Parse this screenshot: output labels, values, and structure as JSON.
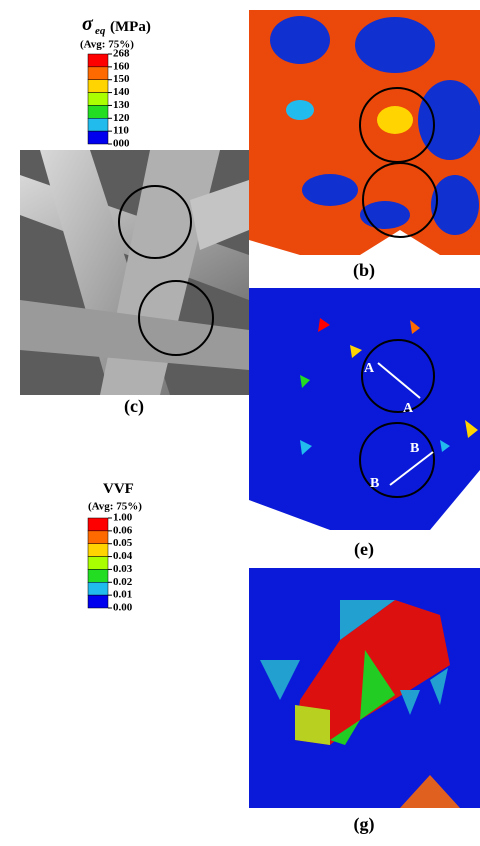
{
  "legends": [
    {
      "symbol": "σ",
      "subscript": "eq",
      "unit": "(MPa)",
      "subtitle": "(Avg: 75%)",
      "labels": [
        "268",
        "160",
        "150",
        "140",
        "130",
        "120",
        "110",
        "000"
      ],
      "colors": [
        "#ff0000",
        "#ff6a00",
        "#ffd400",
        "#aaff00",
        "#22dd22",
        "#22bbee",
        "#0000ee"
      ]
    },
    {
      "title": "VVF",
      "subtitle": "(Avg: 75%)",
      "labels": [
        "1.00",
        "0.06",
        "0.05",
        "0.04",
        "0.03",
        "0.02",
        "0.01",
        "0.00"
      ],
      "colors": [
        "#ff0000",
        "#ff6a00",
        "#ffd400",
        "#aaff00",
        "#22dd22",
        "#22bbee",
        "#0000ee"
      ]
    }
  ],
  "panels": {
    "b": "(b)",
    "c": "(c)",
    "e": "(e)",
    "g": "(g)"
  },
  "annotations": [
    "A",
    "A",
    "B",
    "B"
  ]
}
